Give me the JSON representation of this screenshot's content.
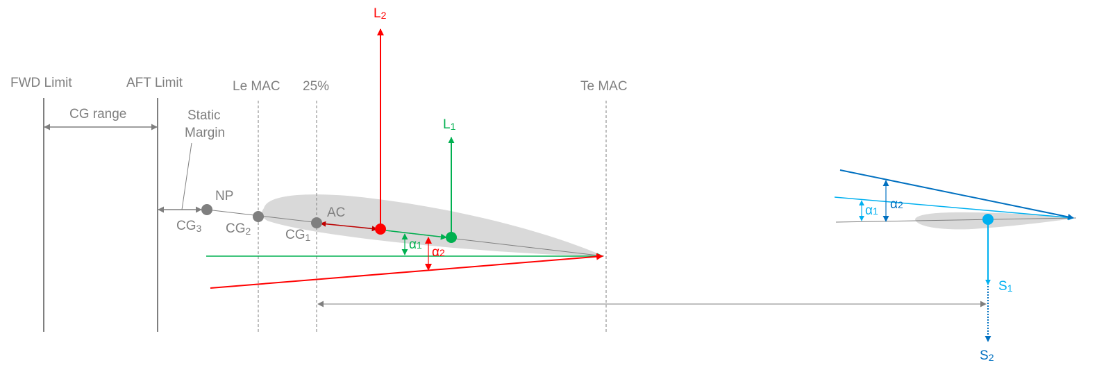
{
  "labels": {
    "fwd_limit": "FWD Limit",
    "aft_limit": "AFT Limit",
    "le_mac": "Le MAC",
    "pct25": "25%",
    "te_mac": "Te MAC",
    "cg_range": "CG range",
    "static_margin_1": "Static",
    "static_margin_2": "Margin",
    "np": "NP",
    "ac": "AC",
    "cg_letter": "CG",
    "cg3_sub": "3",
    "cg2_sub": "2",
    "cg1_sub": "1",
    "l_letter": "L",
    "l2_sub": "2",
    "l1_sub": "1",
    "s_letter": "S",
    "s1_sub": "1",
    "s2_sub": "2",
    "alpha_letter": "α",
    "a1_sub": "1",
    "a2_sub": "2"
  },
  "colors": {
    "gray": "#7f7f7f",
    "airfoil": "#d9d9d9",
    "red": "#ff0000",
    "dark_red": "#c00000",
    "green": "#00b050",
    "light_blue": "#00b0f0",
    "dark_blue": "#0070c0"
  }
}
